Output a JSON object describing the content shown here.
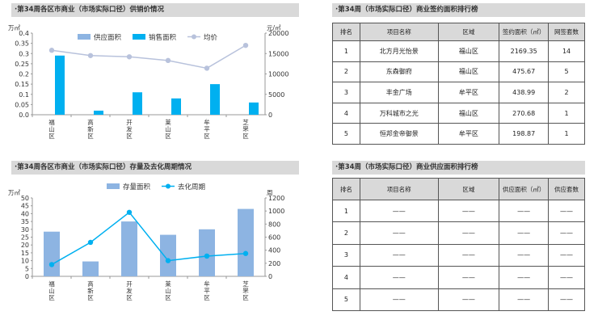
{
  "chart_data": [
    {
      "type": "bar+line",
      "title": "·第34周各区市商业（市场实际口径）供销价情况",
      "y_left_unit": "万㎡",
      "y_right_unit": "元/㎡",
      "ylim_left": [
        0,
        0.4
      ],
      "yticks_left": [
        "0.0",
        "0.05",
        "0.1",
        "0.15",
        "0.2",
        "0.25",
        "0.3",
        "0.35",
        "0.4"
      ],
      "ylim_right": [
        0,
        20000
      ],
      "yticks_right": [
        "0",
        "5000",
        "10000",
        "15000",
        "20000"
      ],
      "categories": [
        "福山区",
        "高新区",
        "开发区",
        "莱山区",
        "牟平区",
        "芝罘区"
      ],
      "series": [
        {
          "name": "供应面积",
          "kind": "bar",
          "color": "#8db4e2",
          "values": [
            0,
            0,
            0,
            0,
            0,
            0
          ]
        },
        {
          "name": "销售面积",
          "kind": "bar",
          "color": "#00b0f0",
          "values": [
            0.29,
            0.02,
            0.11,
            0.08,
            0.15,
            0.06
          ]
        },
        {
          "name": "均价",
          "kind": "line",
          "color": "#b8c2dc",
          "values": [
            15800,
            14500,
            14200,
            13300,
            11400,
            17000
          ]
        }
      ],
      "legend": "top"
    },
    {
      "type": "bar+line",
      "title": "·第34周各区市商业（市场实际口径）存量及去化周期情况",
      "y_left_unit": "万㎡",
      "y_right_unit": "周",
      "ylim_left": [
        0,
        50
      ],
      "yticks_left": [
        "0",
        "5",
        "10",
        "15",
        "20",
        "25",
        "30",
        "35",
        "40",
        "45",
        "50"
      ],
      "ylim_right": [
        0,
        1200
      ],
      "yticks_right": [
        "0",
        "200",
        "400",
        "600",
        "800",
        "1000",
        "1200"
      ],
      "categories": [
        "福山区",
        "高新区",
        "开发区",
        "莱山区",
        "牟平区",
        "芝罘区"
      ],
      "series": [
        {
          "name": "存量面积",
          "kind": "bar",
          "color": "#8db4e2",
          "values": [
            28.5,
            9.5,
            35,
            26.5,
            30,
            43
          ]
        },
        {
          "name": "去化周期",
          "kind": "line",
          "color": "#00b0f0",
          "values": [
            180,
            520,
            980,
            240,
            310,
            350
          ]
        }
      ],
      "legend": "top"
    }
  ],
  "table1": {
    "title": "·第34周（市场实际口径）商业签约面积排行榜",
    "headers": [
      "排名",
      "项目名称",
      "区域",
      "签约面积（㎡）",
      "网签套数"
    ],
    "rows": [
      [
        "1",
        "北方月光怡景",
        "福山区",
        "2169.35",
        "14"
      ],
      [
        "2",
        "东森御府",
        "福山区",
        "475.67",
        "5"
      ],
      [
        "3",
        "丰金广场",
        "牟平区",
        "438.99",
        "2"
      ],
      [
        "4",
        "万科城市之光",
        "福山区",
        "270.68",
        "1"
      ],
      [
        "5",
        "恒邦金帝御景",
        "牟平区",
        "198.87",
        "1"
      ]
    ]
  },
  "table2": {
    "title": "·第34周（市场实际口径）商业供应面积排行榜",
    "headers": [
      "排名",
      "项目名称",
      "区域",
      "供应面积（㎡）",
      "供应套数"
    ],
    "rows": [
      [
        "1",
        "——",
        "——",
        "——",
        "——"
      ],
      [
        "2",
        "——",
        "——",
        "——",
        "——"
      ],
      [
        "3",
        "——",
        "——",
        "——",
        "——"
      ],
      [
        "4",
        "——",
        "——",
        "——",
        "——"
      ],
      [
        "5",
        "——",
        "——",
        "——",
        "——"
      ]
    ]
  }
}
